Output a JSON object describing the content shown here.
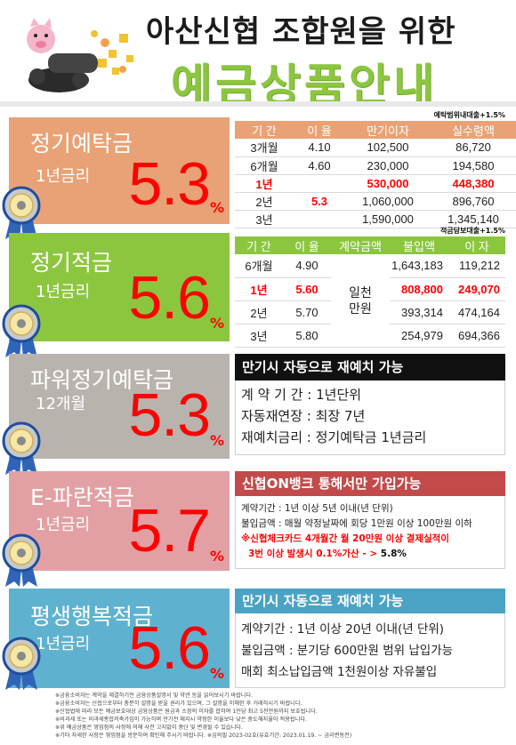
{
  "header": {
    "title_line1": "아산신협 조합원을 위한",
    "title_line2": "예금상품안내",
    "accent": "#8cc63f"
  },
  "products": [
    {
      "name": "정기예탁금",
      "sub": "1년금리",
      "rate": "5.3",
      "pct": "%",
      "color": "#e8a275",
      "note": "예탁범위내대출+1.5%",
      "columns": [
        "기 간",
        "이 율",
        "만기이자",
        "실수령액"
      ],
      "rows": [
        [
          "3개월",
          "4.10",
          "102,500",
          "86,720"
        ],
        [
          "6개월",
          "4.60",
          "230,000",
          "194,580"
        ],
        [
          "1년",
          "",
          "530,000",
          "448,380"
        ],
        [
          "2년",
          "5.3",
          "1,060,000",
          "896,760"
        ],
        [
          "3년",
          "",
          "1,590,000",
          "1,345,140"
        ]
      ]
    },
    {
      "name": "정기적금",
      "sub": "1년금리",
      "rate": "5.6",
      "pct": "%",
      "color": "#8cc63f",
      "note": "적금담보대출+1.5%",
      "columns": [
        "기 간",
        "이 율",
        "계약금액",
        "불입액",
        "이 자"
      ],
      "contract": "일천\n만원",
      "rows": [
        [
          "6개월",
          "4.90",
          "1,643,183",
          "119,212"
        ],
        [
          "1년",
          "5.60",
          "808,800",
          "249,070"
        ],
        [
          "2년",
          "5.70",
          "393,314",
          "474,164"
        ],
        [
          "3년",
          "5.80",
          "254,979",
          "694,366"
        ]
      ]
    },
    {
      "name": "파워정기예탁금",
      "sub": "12개월",
      "rate": "5.3",
      "pct": "%",
      "color": "#b9b3ad",
      "head": "만기시 자동으로 재예치 가능",
      "lines": [
        "계 약 기 간 : 1년단위",
        "자동재연장 : 최장 7년",
        "재예치금리 : 정기예탁금 1년금리"
      ]
    },
    {
      "name": "E-파란적금",
      "sub": "1년금리",
      "rate": "5.7",
      "pct": "%",
      "color": "#e3a0a4",
      "head": "신협ON뱅크 통해서만 가입가능",
      "lines": [
        "계약기간 : 1년 이상 5년 이내(년 단위)",
        "불입금액 : 매월 약정날짜에 회당 1만원 이상 100만원 이하"
      ],
      "red1": "※신협체크카드 4개월간 월 20만원 이상 결제실적이",
      "red2": "3번 이상 발생시 0.1%가산 - > ",
      "red2b": "5.8%"
    },
    {
      "name": "평생행복적금",
      "sub": "1년금리",
      "rate": "5.6",
      "pct": "%",
      "color": "#5fb2cf",
      "head": "만기시 자동으로 재예치 가능",
      "lines": [
        "계약기간 : 1년 이상 20년 이내(년 단위)",
        "불입금액 : 분기당 600만원 범위 납입가능",
        "매회 최소납입금액 1천원이상 자유불입"
      ]
    }
  ],
  "footer": [
    "※금융소비자는 계약을 체결하기전 금융상품설명서 및 약관 등을 읽어보시기 바랍니다.",
    "※금융소비자는 신협으로부터 충분히 설명을 받을 권리가 있으며, 그 설명을 이해한 후 거래하시기 바랍니다.",
    "※신협법에 따라 모든 예금보호대상 금융상품은 원금과 소정의 이자를 합하여 1인당 최고 5천만원까지 보호됩니다.",
    "※비과세 또는 비과세종합저축가입이 가능하며 만기전 해지시 약정한 이율보다 낮은 중도해지율이 적용됩니다.",
    "※위 예금상품은 영업점의 사정에 의해 사전 고지없이 중단 및 변경될 수 있습니다.",
    "※기타 자세한 사항은 영업점을 방문하여 확인해 주시기 바랍니다. ※심의필 2023-02호(유효기간: 2023.01.19. ~ 금리변동전)"
  ]
}
